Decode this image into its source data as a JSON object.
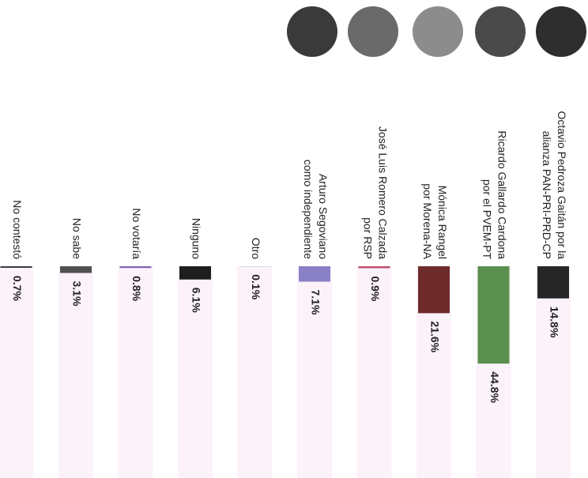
{
  "chart_data": {
    "type": "bar",
    "categories": [
      [
        "Octavio Pedroza Gaitán por la",
        "alianza PAN-PRI-PRD-CP"
      ],
      [
        "Ricardo Gallardo Cardona",
        "por el PVEM-PT"
      ],
      [
        "Mónica Rangel",
        "por Morena-NA"
      ],
      [
        "José Luis Romero Calzada",
        "por RSP"
      ],
      [
        "Arturo Segoviano",
        "como independiente"
      ],
      [
        "Otro"
      ],
      [
        "Ninguno"
      ],
      [
        "No votaría"
      ],
      [
        "No sabe"
      ],
      [
        "No contestó"
      ]
    ],
    "values": [
      14.8,
      44.8,
      21.6,
      0.9,
      7.1,
      0.1,
      6.1,
      0.8,
      3.1,
      0.7
    ],
    "value_labels": [
      "14.8%",
      "44.8%",
      "21.6%",
      "0.9%",
      "7.1%",
      "0.1%",
      "6.1%",
      "0.8%",
      "3.1%",
      "0.7%"
    ],
    "colors": [
      "#262626",
      "#5b8f4f",
      "#6e2b2b",
      "#c2506c",
      "#8a80c8",
      "#9b8ad0",
      "#1e1e1e",
      "#7d62b4",
      "#505050",
      "#333333"
    ]
  }
}
